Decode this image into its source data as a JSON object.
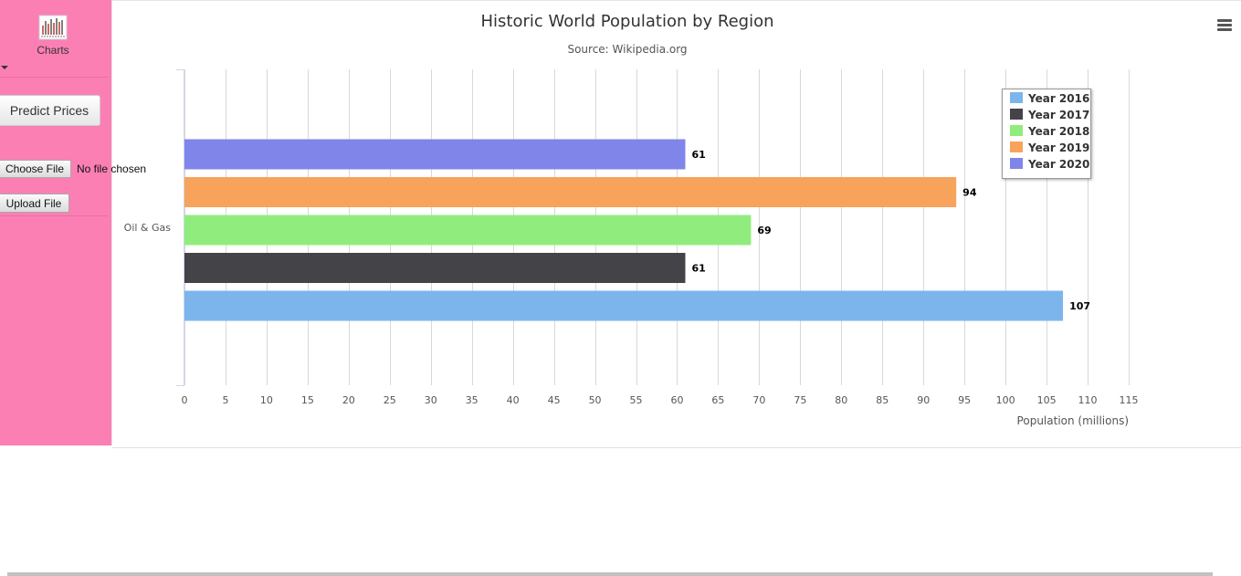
{
  "sidebar": {
    "charts_label": "Charts",
    "predict_button": "Predict Prices",
    "choose_file_button": "Choose File",
    "no_file_text": "No file chosen",
    "upload_button": "Upload File"
  },
  "chart_data": {
    "type": "bar",
    "orientation": "horizontal",
    "title": "Historic World Population by Region",
    "subtitle": "Source: Wikipedia.org",
    "categories": [
      "Oil & Gas"
    ],
    "xlabel": "Population (millions)",
    "xlim": [
      0,
      115
    ],
    "xticks": [
      0,
      5,
      10,
      15,
      20,
      25,
      30,
      35,
      40,
      45,
      50,
      55,
      60,
      65,
      70,
      75,
      80,
      85,
      90,
      95,
      100,
      105,
      110,
      115
    ],
    "grid": true,
    "legend_position": "top-right",
    "data_labels": true,
    "series": [
      {
        "name": "Year 2016",
        "values": [
          107
        ],
        "color": "#7cb5ec"
      },
      {
        "name": "Year 2017",
        "values": [
          61
        ],
        "color": "#434348"
      },
      {
        "name": "Year 2018",
        "values": [
          69
        ],
        "color": "#90ed7d"
      },
      {
        "name": "Year 2019",
        "values": [
          94
        ],
        "color": "#f7a35c"
      },
      {
        "name": "Year 2020",
        "values": [
          61
        ],
        "color": "#8085e9"
      }
    ]
  }
}
